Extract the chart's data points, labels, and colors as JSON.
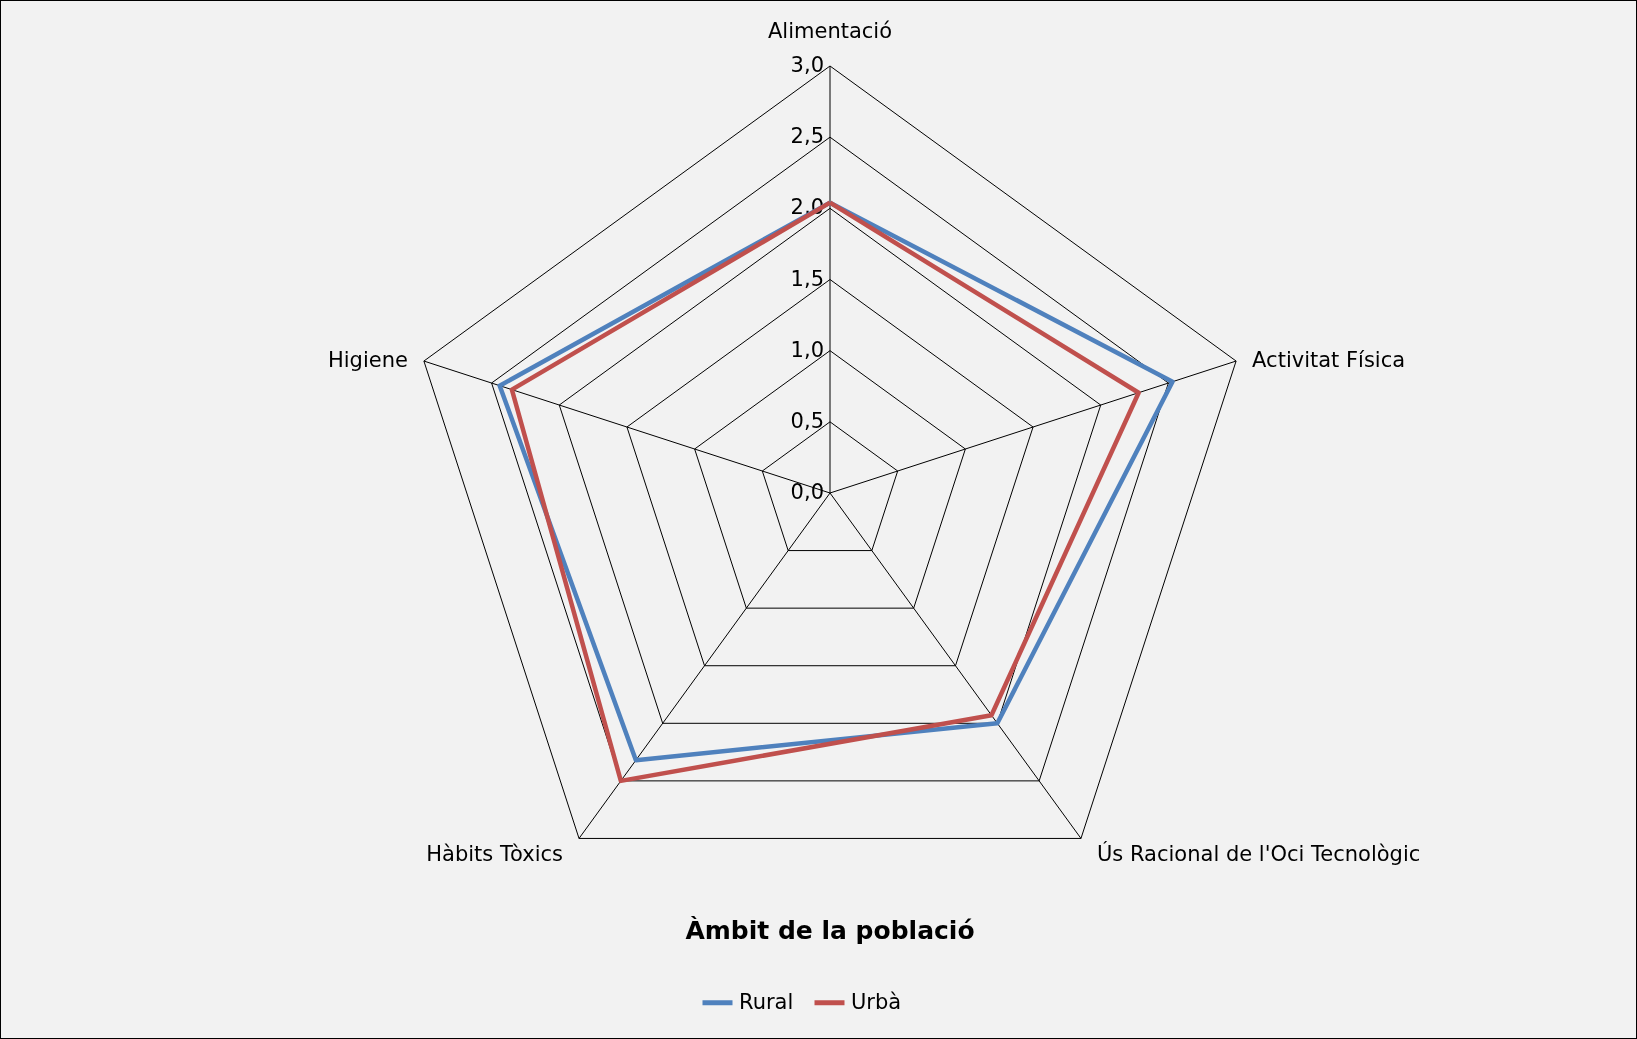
{
  "chart_data": {
    "type": "radar",
    "title": "Àmbit de la població",
    "categories": [
      "Alimentació",
      "Activitat Física",
      "Ús Racional de l'Oci Tecnològic",
      "Hàbits Tòxics",
      "Higiene"
    ],
    "series": [
      {
        "name": "Rural",
        "color": "#4f81bd",
        "values": [
          2.04,
          2.53,
          2.0,
          2.32,
          2.44
        ]
      },
      {
        "name": "Urbà",
        "color": "#c0504d",
        "values": [
          2.04,
          2.28,
          1.93,
          2.5,
          2.35
        ]
      }
    ],
    "ylim": [
      0,
      3
    ],
    "yticks": [
      {
        "value": 0,
        "label": "0,0"
      },
      {
        "value": 0.5,
        "label": "0,5"
      },
      {
        "value": 1,
        "label": "1,0"
      },
      {
        "value": 1.5,
        "label": "1,5"
      },
      {
        "value": 2,
        "label": "2,0"
      },
      {
        "value": 2.5,
        "label": "2,5"
      },
      {
        "value": 3,
        "label": "3,0"
      }
    ],
    "grid": true,
    "legend": "bottom",
    "marker": "none"
  }
}
